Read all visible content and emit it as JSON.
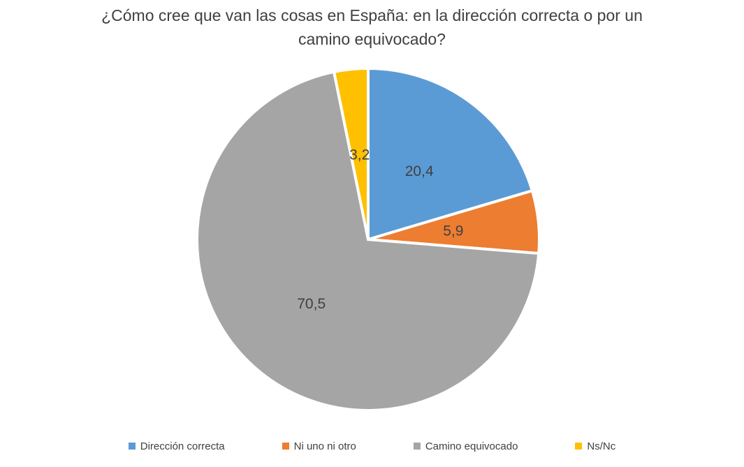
{
  "title": {
    "lines": [
      "¿Cómo cree que van las cosas en España: en la dirección correcta o por un",
      "camino equivocado?"
    ],
    "color": "#404040"
  },
  "chart_data": {
    "type": "pie",
    "title": "¿Cómo cree que van las cosas en España: en la dirección correcta o por un camino equivocado?",
    "categories": [
      "Dirección correcta",
      "Ni uno ni otro",
      "Camino equivocado",
      "Ns/Nc"
    ],
    "values": [
      20.4,
      5.9,
      70.5,
      3.2
    ],
    "value_labels": [
      "20,4",
      "5,9",
      "70,5",
      "3,2"
    ],
    "colors": [
      "#5B9BD5",
      "#ED7D31",
      "#A5A5A5",
      "#FFC000"
    ],
    "label_color": "#404040",
    "slice_border_color": "#FFFFFF",
    "start_angle_deg": 0,
    "direction": "clockwise",
    "label_radius_fraction": 0.5,
    "legend_position": "bottom",
    "background_color": "#FFFFFF"
  }
}
